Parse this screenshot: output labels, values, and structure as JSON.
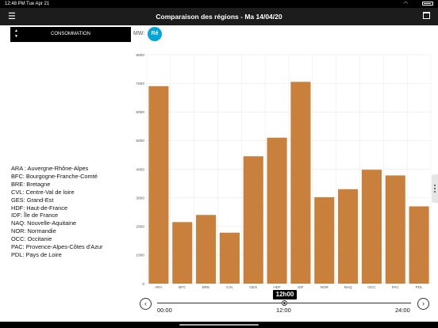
{
  "status_bar": {
    "time": "12:48 PM",
    "date": "Tue Apr 21"
  },
  "nav": {
    "title": "Comparaison des régions - Ma 14/04/20"
  },
  "measure": {
    "label": "CONSOMMATION"
  },
  "unit_label": "MW",
  "re_button": "Ré",
  "legend": [
    "ARA : Auvergne-Rhône-Alpes",
    "BFC: Bourgogne-Franche-Comté",
    "BRE: Bretagne",
    "CVL: Centre-Val de loire",
    "GES: Grand-Est",
    "HDF: Haut-de-France",
    "IDF: Île de France",
    "NAQ: Nouvelle-Aquitaine",
    "NOR: Normandie",
    "OCC: Occitanie",
    "PAC: Provence-Alpes-Côtes d'Azur",
    "PDL: Pays de Loire"
  ],
  "time_selector": {
    "current": "12h00",
    "start": "00:00",
    "mid": "12:00",
    "end": "24:00",
    "position": 0.5
  },
  "chart_data": {
    "type": "bar",
    "categories": [
      "ARA",
      "BFC",
      "BRE",
      "CVL",
      "GES",
      "HDF",
      "IDF",
      "NOR",
      "NAQ",
      "OCC",
      "PAC",
      "PDL"
    ],
    "values": [
      6900,
      2150,
      2400,
      1780,
      4450,
      5100,
      7050,
      3020,
      3300,
      3980,
      3780,
      2700
    ],
    "ylim": [
      0,
      8000
    ],
    "yticks": [
      0,
      1000,
      2000,
      3000,
      4000,
      5000,
      6000,
      7000,
      8000
    ],
    "grid": true,
    "bar_color": "#c8803c"
  },
  "colors": {
    "accent": "#00a6d9",
    "bar": "#c8803c"
  }
}
